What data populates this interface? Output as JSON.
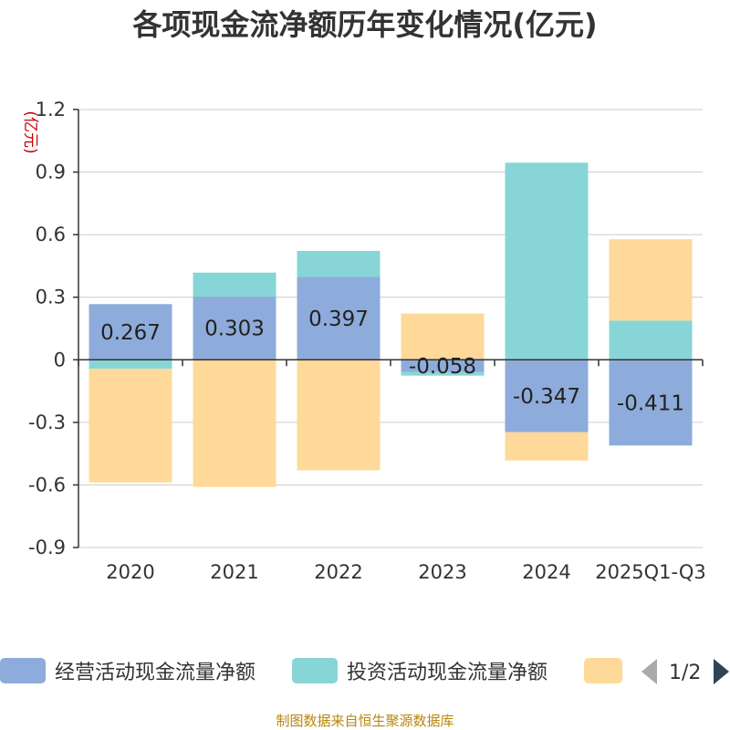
{
  "chart_data": {
    "type": "bar",
    "stacked": true,
    "title": "各项现金流净额历年变化情况(亿元)",
    "ylabel": "(亿元)",
    "xlabel": "",
    "categories": [
      "2020",
      "2021",
      "2022",
      "2023",
      "2024",
      "2025Q1-Q3"
    ],
    "ylim": [
      -0.9,
      1.2
    ],
    "yticks": [
      "1.2",
      "0.9",
      "0.6",
      "0.3",
      "0",
      "-0.3",
      "-0.6",
      "-0.9"
    ],
    "ytick_values": [
      1.2,
      0.9,
      0.6,
      0.3,
      0,
      -0.3,
      -0.6,
      -0.9
    ],
    "series": [
      {
        "name": "经营活动现金流量净额",
        "color": "#8eacdb",
        "values": [
          0.267,
          0.303,
          0.397,
          -0.058,
          -0.347,
          -0.411
        ],
        "labels": [
          "0.267",
          "0.303",
          "0.397",
          "-0.058",
          "-0.347",
          "-0.411"
        ]
      },
      {
        "name": "投资活动现金流量净额",
        "color": "#88d5d7",
        "values": [
          -0.043,
          0.115,
          0.125,
          -0.018,
          0.945,
          0.188
        ]
      },
      {
        "name": "",
        "color": "#fed999",
        "values": [
          -0.545,
          -0.61,
          -0.53,
          0.222,
          -0.136,
          0.39
        ]
      }
    ]
  },
  "legend": {
    "items": [
      {
        "label": "经营活动现金流量净额",
        "color": "#8eacdb"
      },
      {
        "label": "投资活动现金流量净额",
        "color": "#88d5d7"
      },
      {
        "label": "",
        "color": "#fed999"
      }
    ],
    "page": "1/2",
    "prev_icon": "triangle-left-icon",
    "next_icon": "triangle-right-icon"
  },
  "source": "制图数据来自恒生聚源数据库"
}
